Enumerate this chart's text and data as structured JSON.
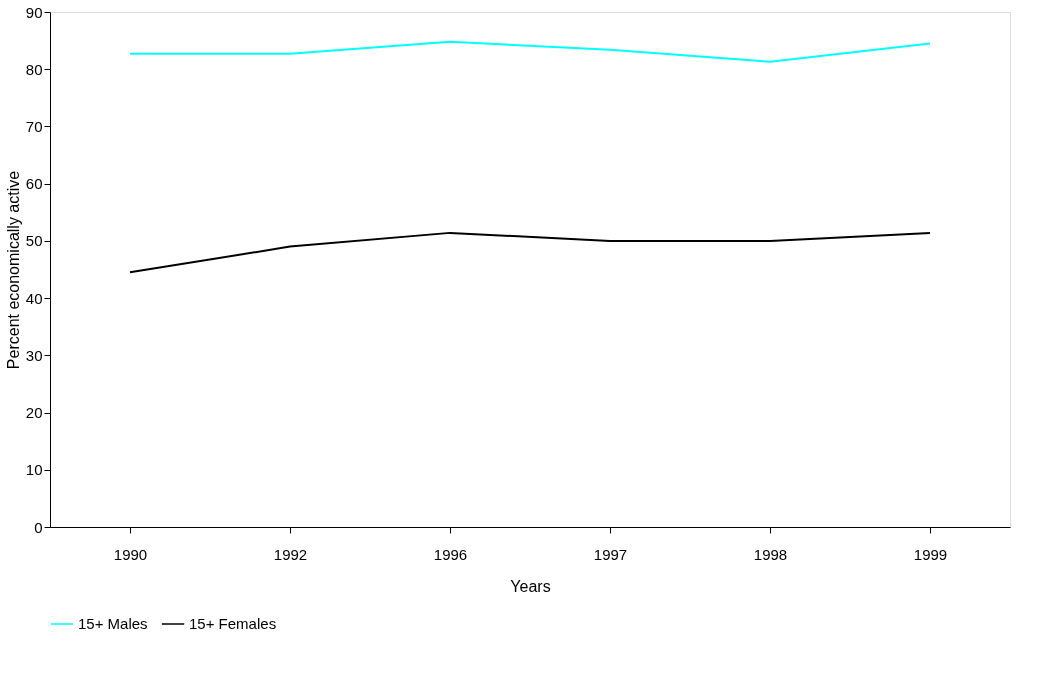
{
  "chart_data": {
    "type": "line",
    "xlabel": "Years",
    "ylabel": "Percent economically active",
    "categories": [
      "1990",
      "1992",
      "1996",
      "1997",
      "1998",
      "1999"
    ],
    "series": [
      {
        "name": "15+ Males",
        "color": "#00ffff",
        "values": [
          82.7,
          82.7,
          84.8,
          83.4,
          81.3,
          84.5
        ]
      },
      {
        "name": "15+ Females",
        "color": "#000000",
        "values": [
          44.5,
          49,
          51.4,
          50,
          50,
          51.4
        ]
      }
    ],
    "ylim": [
      0,
      90
    ],
    "yticks": [
      0,
      10,
      20,
      30,
      40,
      50,
      60,
      70,
      80,
      90
    ],
    "grid": false,
    "legend": "bottom",
    "marker": "none",
    "line_style": "solid"
  }
}
